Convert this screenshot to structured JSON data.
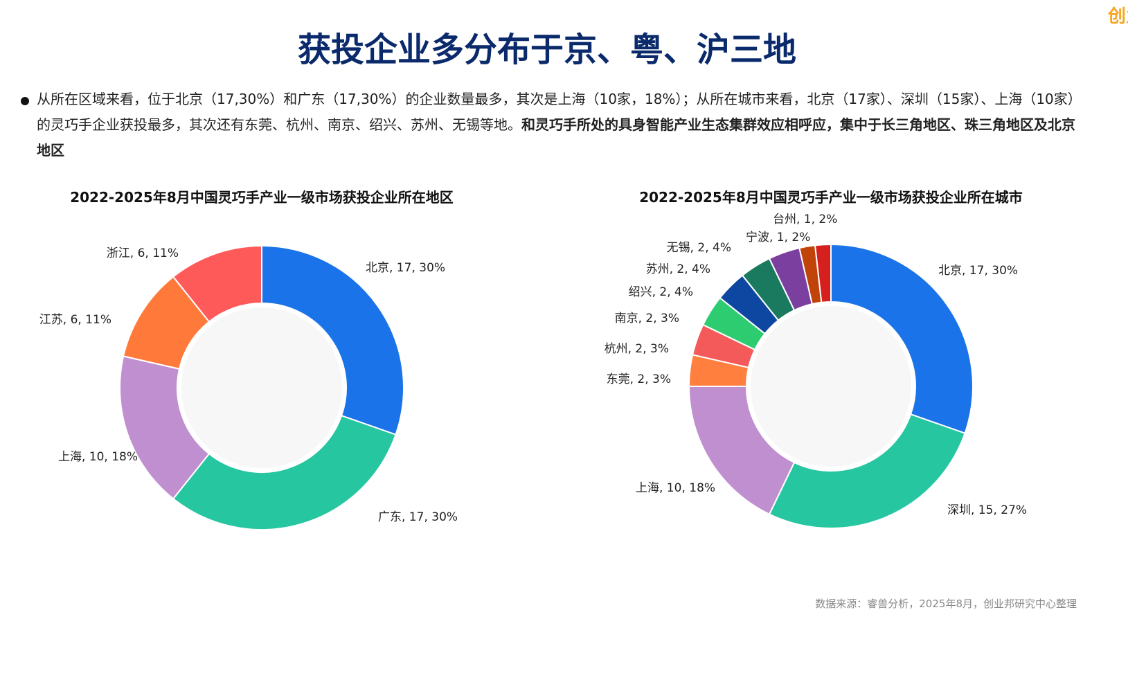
{
  "header": {
    "title": "获投企业多分布于京、粤、沪三地",
    "logo": "创业"
  },
  "bullet": {
    "text": "从所在区域来看，位于北京（17,30%）和广东（17,30%）的企业数量最多，其次是上海（10家，18%）；从所在城市来看，北京（17家）、深圳（15家）、上海（10家）的灵巧手企业获投最多，其次还有东莞、杭州、南京、绍兴、苏州、无锡等地。",
    "bold": "和灵巧手所处的具身智能产业生态集群效应相呼应，集中于长三角地区、珠三角地区及北京地区"
  },
  "chart_data": [
    {
      "type": "donut",
      "title": "2022-2025年8月中国灵巧手产业一级市场获投企业所在地区",
      "categories": [
        "北京",
        "广东",
        "上海",
        "江苏",
        "浙江"
      ],
      "values": [
        17,
        17,
        10,
        6,
        6
      ],
      "value_labels": [
        "北京, 17, 30%",
        "广东, 17, 30%",
        "上海, 10, 18%",
        "江苏, 6, 11%",
        "浙江, 6, 11%"
      ],
      "colors": [
        "#1a73e8",
        "#26c6a0",
        "#c08fd0",
        "#ff7a3a",
        "#ff5a5a"
      ]
    },
    {
      "type": "donut",
      "title": "2022-2025年8月中国灵巧手产业一级市场获投企业所在城市",
      "categories": [
        "北京",
        "深圳",
        "上海",
        "东莞",
        "杭州",
        "南京",
        "绍兴",
        "苏州",
        "无锡",
        "宁波",
        "台州"
      ],
      "values": [
        17,
        15,
        10,
        2,
        2,
        2,
        2,
        2,
        2,
        1,
        1
      ],
      "value_labels": [
        "北京, 17, 30%",
        "深圳, 15, 27%",
        "上海, 10, 18%",
        "东莞, 2, 3%",
        "杭州, 2, 3%",
        "南京, 2, 3%",
        "绍兴, 2, 4%",
        "苏州, 2, 4%",
        "无锡, 2, 4%",
        "宁波, 1, 2%",
        "台州, 1, 2%"
      ],
      "colors": [
        "#1a73e8",
        "#26c6a0",
        "#c08fd0",
        "#ff7f3f",
        "#f55a5a",
        "#2ecc71",
        "#0d47a1",
        "#1a7a60",
        "#7b3fa0",
        "#c0440a",
        "#d61f1f"
      ]
    }
  ],
  "source": "数据来源：睿兽分析，2025年8月，创业邦研究中心整理"
}
